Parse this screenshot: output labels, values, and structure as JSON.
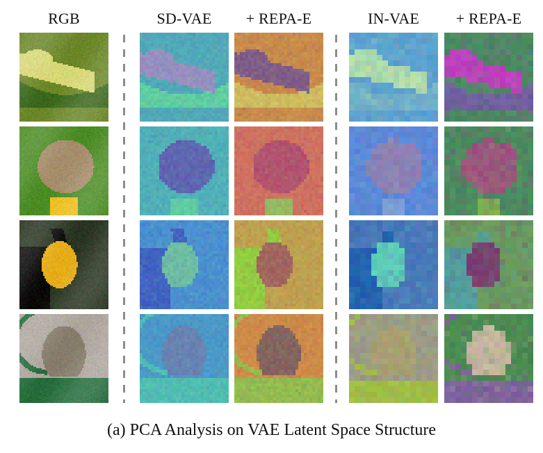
{
  "figure": {
    "caption": "(a) PCA Analysis on VAE Latent Space Structure",
    "columns": [
      {
        "id": "rgb",
        "label": "RGB",
        "grid": 64,
        "kind": "photo"
      },
      {
        "id": "sd-vae",
        "label": "SD-VAE",
        "grid": 32,
        "kind": "pca"
      },
      {
        "id": "sd-vae-repa-e",
        "label": "+ REPA-E",
        "grid": 32,
        "kind": "pca"
      },
      {
        "id": "in-vae",
        "label": "IN-VAE",
        "grid": 16,
        "kind": "pca"
      },
      {
        "id": "in-vae-repa-e",
        "label": "+ REPA-E",
        "grid": 16,
        "kind": "pca"
      }
    ],
    "rows": [
      {
        "id": "lizard",
        "subject": "green anole lizard on leaf",
        "palettes": {
          "rgb": {
            "bg": "#6f8a2e",
            "fg": "#d9d97a",
            "accent": "#3f6b22",
            "shape": "lizard"
          },
          "sd-vae": {
            "bg": "#4fa8b8",
            "fg": "#9a8cc0",
            "accent": "#5fd0a0",
            "shape": "lizard"
          },
          "sd-vae-repa-e": {
            "bg": "#c98a4a",
            "fg": "#7a5a8a",
            "accent": "#d0c060",
            "shape": "lizard"
          },
          "in-vae": {
            "bg": "#5aa0d0",
            "fg": "#b8e0a8",
            "accent": "#70b0c8",
            "shape": "lizard"
          },
          "in-vae-repa-e": {
            "bg": "#4a8a60",
            "fg": "#c040c0",
            "accent": "#7060a0",
            "shape": "lizard"
          }
        }
      },
      {
        "id": "butterfly",
        "subject": "butterfly on yellow flower",
        "palettes": {
          "rgb": {
            "bg": "#4f8f2a",
            "fg": "#a89070",
            "accent": "#f0c020",
            "shape": "butterfly"
          },
          "sd-vae": {
            "bg": "#50b0b8",
            "fg": "#6060b0",
            "accent": "#60d0a0",
            "shape": "butterfly"
          },
          "sd-vae-repa-e": {
            "bg": "#d07060",
            "fg": "#b05070",
            "accent": "#90c060",
            "shape": "butterfly"
          },
          "in-vae": {
            "bg": "#5a88d8",
            "fg": "#9080b0",
            "accent": "#80a0d8",
            "shape": "butterfly"
          },
          "in-vae-repa-e": {
            "bg": "#4a8a60",
            "fg": "#a05080",
            "accent": "#80b050",
            "shape": "butterfly"
          }
        }
      },
      {
        "id": "toucan",
        "subject": "toucan with yellow chest",
        "palettes": {
          "rgb": {
            "bg": "#2f3a28",
            "fg": "#e8b020",
            "accent": "#101010",
            "shape": "toucan"
          },
          "sd-vae": {
            "bg": "#4a90d0",
            "fg": "#70c0a0",
            "accent": "#4060c0",
            "shape": "toucan"
          },
          "sd-vae-repa-e": {
            "bg": "#c0a050",
            "fg": "#a06060",
            "accent": "#90d040",
            "shape": "toucan"
          },
          "in-vae": {
            "bg": "#4a78b8",
            "fg": "#60d0b8",
            "accent": "#2060b0",
            "shape": "toucan"
          },
          "in-vae-repa-e": {
            "bg": "#6a9a60",
            "fg": "#7a3a70",
            "accent": "#50a0a0",
            "shape": "toucan"
          }
        }
      },
      {
        "id": "kitten",
        "subject": "kitten in green basket with red blanket",
        "palettes": {
          "rgb": {
            "bg": "#b0a8a0",
            "fg": "#8a8070",
            "accent": "#2a7040",
            "shape": "kitten"
          },
          "sd-vae": {
            "bg": "#4a98c8",
            "fg": "#6a80b0",
            "accent": "#50c0b0",
            "shape": "kitten"
          },
          "sd-vae-repa-e": {
            "bg": "#d08a48",
            "fg": "#806060",
            "accent": "#90c050",
            "shape": "kitten"
          },
          "in-vae": {
            "bg": "#9a9a88",
            "fg": "#a8a070",
            "accent": "#a0c040",
            "shape": "kitten"
          },
          "in-vae-repa-e": {
            "bg": "#4a8a50",
            "fg": "#c8b8a0",
            "accent": "#8060a0",
            "shape": "kitten"
          }
        }
      }
    ],
    "dividers": [
      {
        "after_column": "rgb"
      },
      {
        "after_column": "sd-vae-repa-e"
      }
    ]
  }
}
